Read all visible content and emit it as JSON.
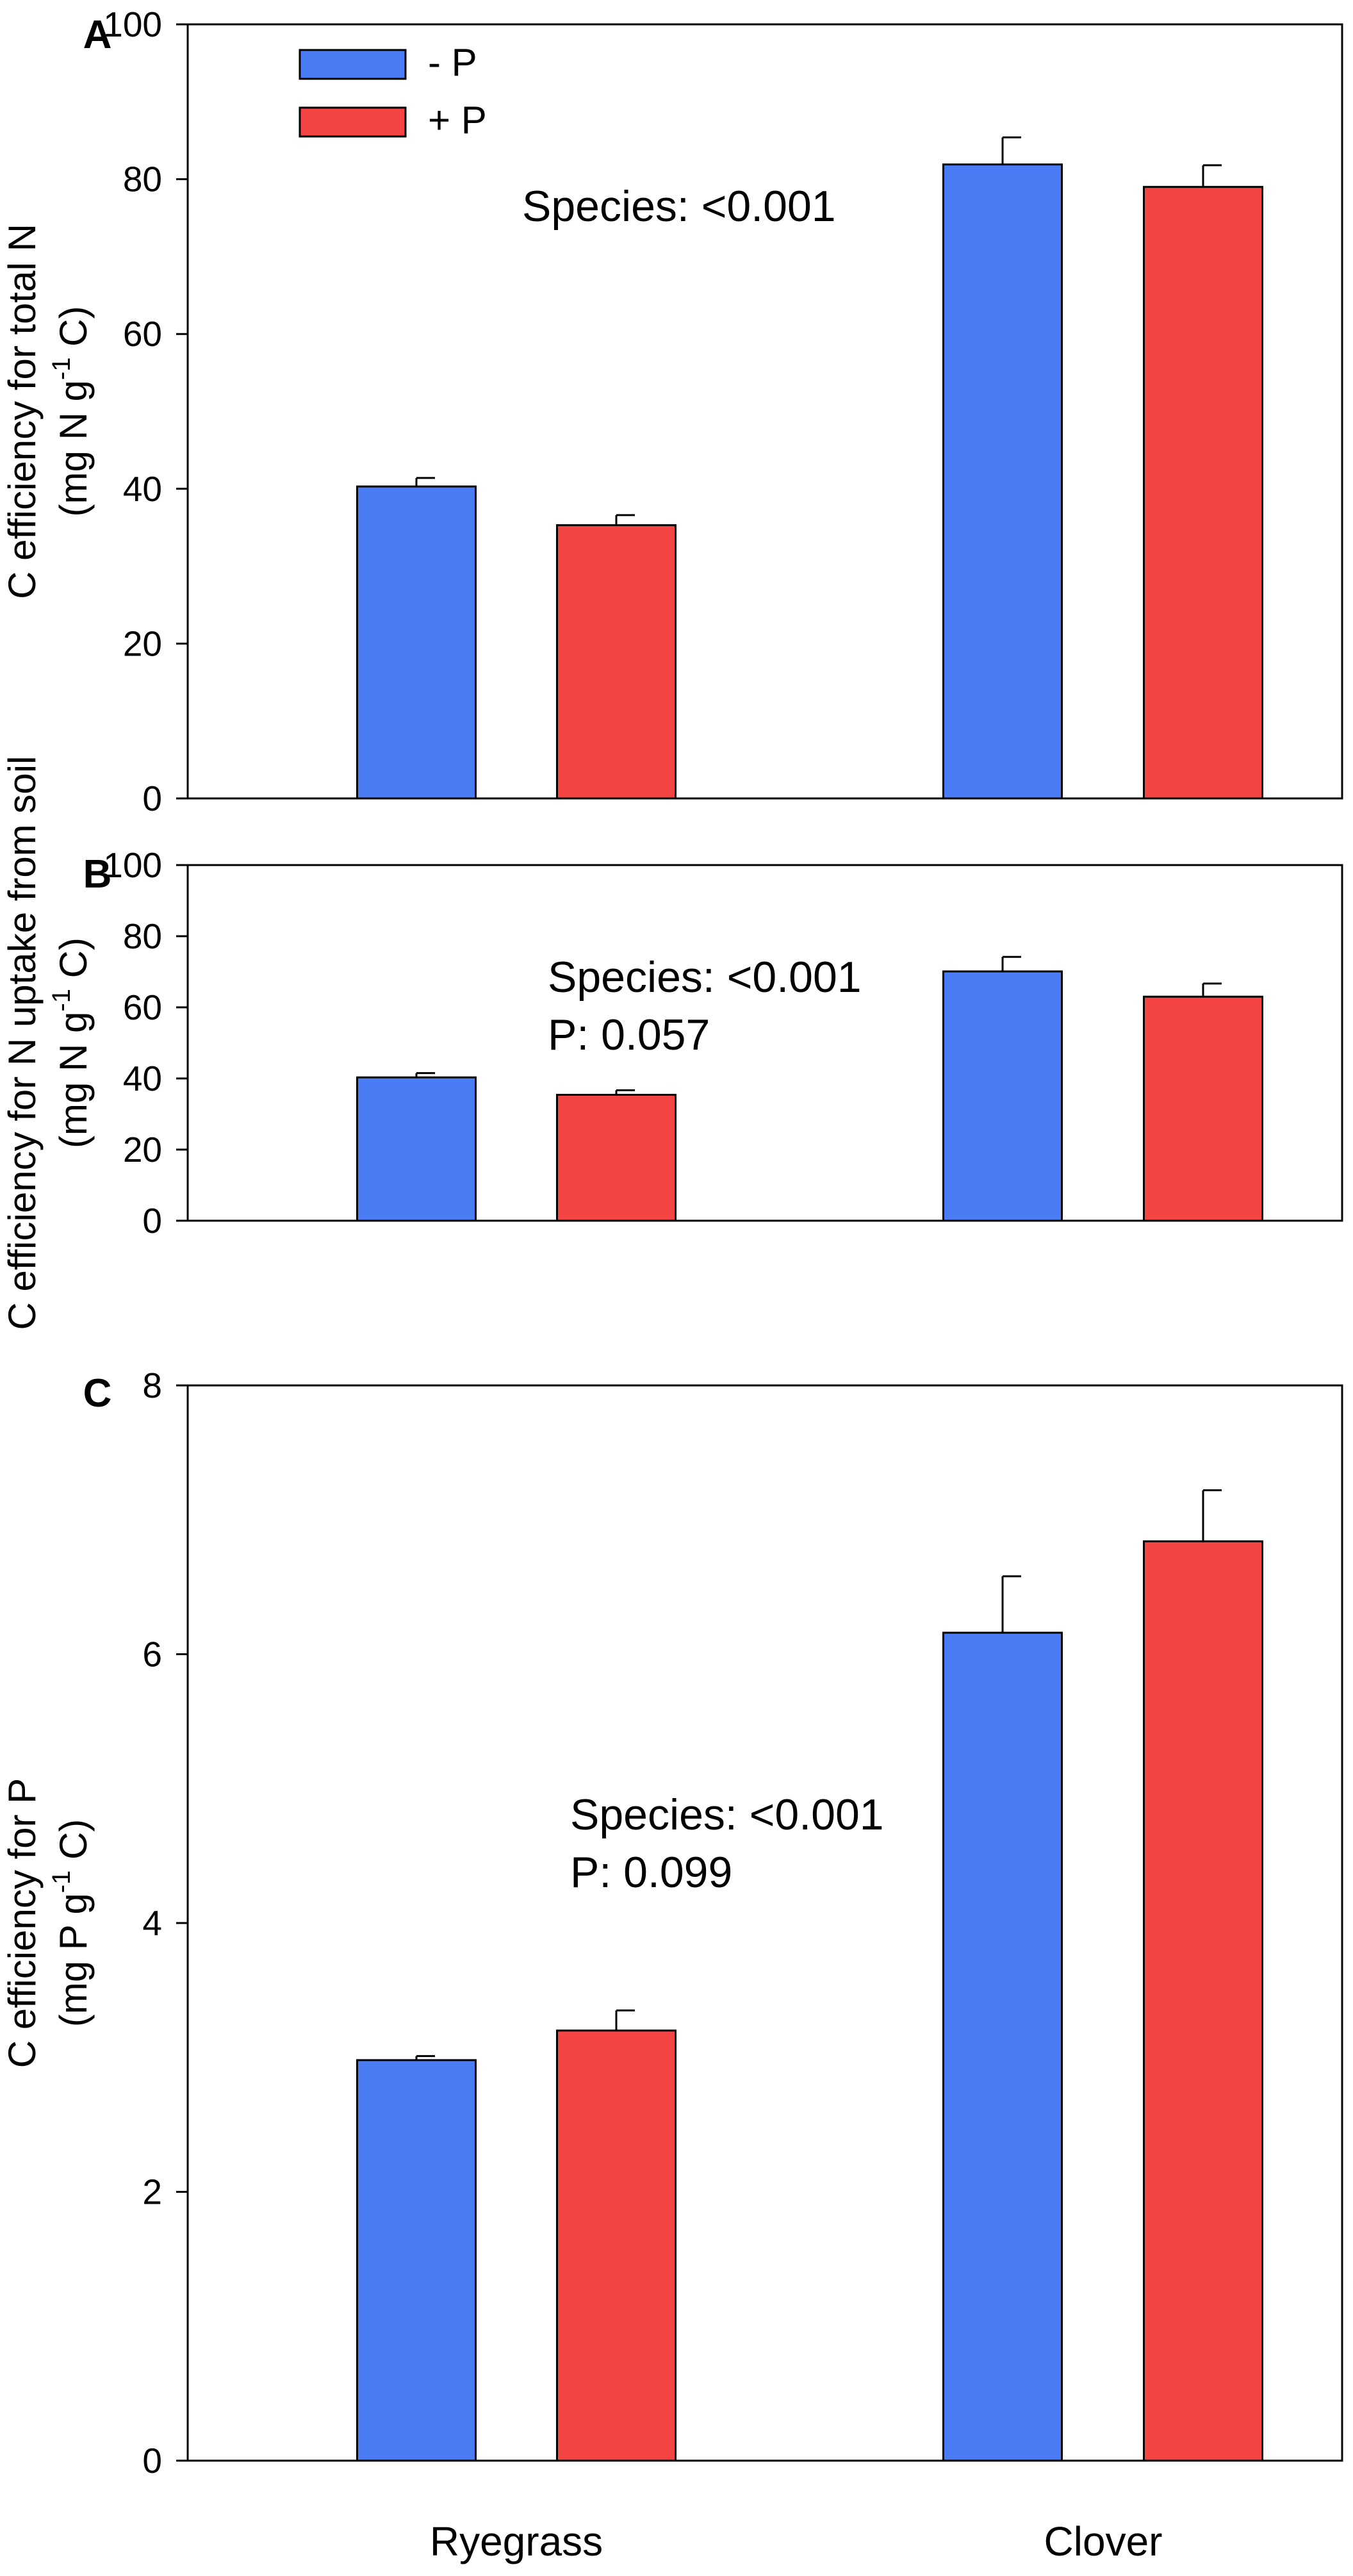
{
  "legend": {
    "items": [
      {
        "label": "- P",
        "color": "#4a7cf5"
      },
      {
        "label": "+ P",
        "color": "#f44444"
      }
    ]
  },
  "categories": [
    "Ryegrass",
    "Clover"
  ],
  "colors": {
    "minus_p": "#4a7cf5",
    "plus_p": "#f44444",
    "axis": "#000000"
  },
  "chart_data": [
    {
      "type": "bar",
      "panel": "A",
      "categories": [
        "Ryegrass",
        "Clover"
      ],
      "series": [
        {
          "name": "- P",
          "values": [
            40.3,
            81.9
          ],
          "errors": [
            1.1,
            3.5
          ]
        },
        {
          "name": "+ P",
          "values": [
            35.3,
            79.0
          ],
          "errors": [
            1.3,
            2.8
          ]
        }
      ],
      "ylabel_line1": "C efficiency for total N",
      "ylabel_line2_prefix": "(mg N g",
      "ylabel_line2_sup": "-1",
      "ylabel_line2_suffix": " C)",
      "ylim": [
        0,
        100
      ],
      "yticks": [
        "0",
        "20",
        "40",
        "60",
        "80",
        "100"
      ],
      "annotations": [
        "Species: <0.001"
      ],
      "legend_position": "top-left"
    },
    {
      "type": "bar",
      "panel": "B",
      "categories": [
        "Ryegrass",
        "Clover"
      ],
      "series": [
        {
          "name": "- P",
          "values": [
            40.3,
            70.1
          ],
          "errors": [
            1.2,
            4.1
          ]
        },
        {
          "name": "+ P",
          "values": [
            35.4,
            63.0
          ],
          "errors": [
            1.3,
            3.7
          ]
        }
      ],
      "ylabel_line1": "C efficiency for N uptake from soil",
      "ylabel_line2_prefix": "(mg N g",
      "ylabel_line2_sup": "-1",
      "ylabel_line2_suffix": " C)",
      "ylim": [
        0,
        100
      ],
      "yticks": [
        "0",
        "20",
        "40",
        "60",
        "80",
        "100"
      ],
      "annotations": [
        "Species: <0.001",
        "P: 0.057"
      ]
    },
    {
      "type": "bar",
      "panel": "C",
      "categories": [
        "Ryegrass",
        "Clover"
      ],
      "series": [
        {
          "name": "- P",
          "values": [
            2.98,
            6.16
          ],
          "errors": [
            0.03,
            0.42
          ]
        },
        {
          "name": "+ P",
          "values": [
            3.2,
            6.84
          ],
          "errors": [
            0.15,
            0.38
          ]
        }
      ],
      "ylabel_line1": "C efficiency for P",
      "ylabel_line2_prefix": "(mg P g",
      "ylabel_line2_sup": "-1",
      "ylabel_line2_suffix": " C)",
      "ylim": [
        0,
        8
      ],
      "yticks": [
        "0",
        "2",
        "4",
        "6",
        "8"
      ],
      "annotations": [
        "Species: <0.001",
        "P: 0.099"
      ]
    }
  ]
}
